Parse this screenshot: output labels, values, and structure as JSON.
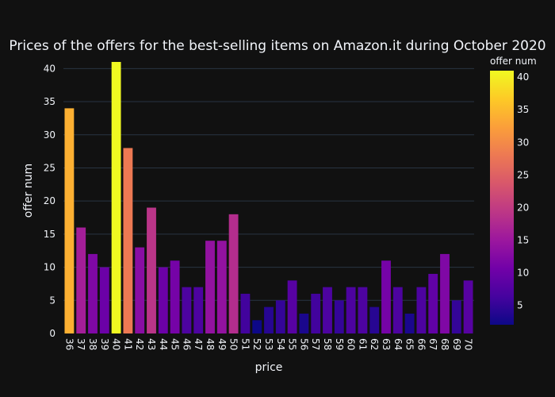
{
  "chart_data": {
    "type": "bar",
    "title": "Prices of the offers for the best-selling items on Amazon.it during October 2020",
    "xlabel": "price",
    "ylabel": "offer num",
    "categories": [
      "36",
      "37",
      "38",
      "39",
      "40",
      "41",
      "42",
      "43",
      "44",
      "45",
      "46",
      "47",
      "48",
      "49",
      "50",
      "51",
      "52",
      "53",
      "54",
      "55",
      "56",
      "57",
      "58",
      "59",
      "60",
      "61",
      "62",
      "63",
      "64",
      "65",
      "66",
      "67",
      "68",
      "69",
      "70"
    ],
    "values": [
      34,
      16,
      12,
      10,
      41,
      28,
      13,
      19,
      10,
      11,
      7,
      7,
      14,
      14,
      18,
      6,
      2,
      4,
      5,
      8,
      3,
      6,
      7,
      5,
      7,
      7,
      4,
      11,
      7,
      3,
      7,
      9,
      12,
      5,
      8
    ],
    "ylim": [
      0,
      41
    ],
    "yticks": [
      0,
      5,
      10,
      15,
      20,
      25,
      30,
      35,
      40
    ],
    "grid": true,
    "colorbar": {
      "title": "offer num",
      "min": 2,
      "max": 41,
      "ticks": [
        5,
        10,
        15,
        20,
        25,
        30,
        35,
        40
      ],
      "colorscale": [
        "#0d0887",
        "#46039f",
        "#7201a8",
        "#9c179e",
        "#bd3786",
        "#d8576b",
        "#ed7953",
        "#fb9f3a",
        "#fdca26",
        "#f0f921"
      ]
    },
    "colors": {
      "background": "#111111",
      "grid": "#283442",
      "text": "#f2f5fa"
    }
  }
}
